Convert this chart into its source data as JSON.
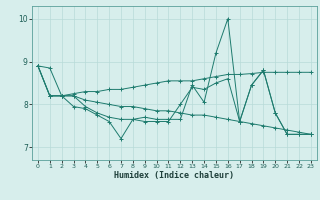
{
  "title": "",
  "xlabel": "Humidex (Indice chaleur)",
  "xlim": [
    -0.5,
    23.5
  ],
  "ylim": [
    6.7,
    10.3
  ],
  "yticks": [
    7,
    8,
    9,
    10
  ],
  "xticks": [
    0,
    1,
    2,
    3,
    4,
    5,
    6,
    7,
    8,
    9,
    10,
    11,
    12,
    13,
    14,
    15,
    16,
    17,
    18,
    19,
    20,
    21,
    22,
    23
  ],
  "bg_color": "#d7eeec",
  "line_color": "#1e7b6e",
  "grid_color": "#b8dbd8",
  "figsize": [
    3.2,
    2.0
  ],
  "dpi": 100,
  "series": [
    [
      8.9,
      8.85,
      8.2,
      7.95,
      7.9,
      7.75,
      7.6,
      7.2,
      7.65,
      7.6,
      7.6,
      7.6,
      8.0,
      8.4,
      8.35,
      8.5,
      8.6,
      7.6,
      8.45,
      8.8,
      7.8,
      7.3,
      7.3,
      7.3
    ],
    [
      8.9,
      8.2,
      8.2,
      8.25,
      8.3,
      8.3,
      8.35,
      8.35,
      8.4,
      8.45,
      8.5,
      8.55,
      8.55,
      8.55,
      8.6,
      8.65,
      8.7,
      8.7,
      8.72,
      8.75,
      8.75,
      8.75,
      8.75,
      8.75
    ],
    [
      8.9,
      8.2,
      8.2,
      8.2,
      8.1,
      8.05,
      8.0,
      7.95,
      7.95,
      7.9,
      7.85,
      7.85,
      7.8,
      7.75,
      7.75,
      7.7,
      7.65,
      7.6,
      7.55,
      7.5,
      7.45,
      7.4,
      7.35,
      7.3
    ],
    [
      8.9,
      8.2,
      8.2,
      8.2,
      7.95,
      7.8,
      7.7,
      7.65,
      7.65,
      7.7,
      7.65,
      7.65,
      7.65,
      8.45,
      8.05,
      9.2,
      10.0,
      7.6,
      8.45,
      8.8,
      7.8,
      7.3,
      7.3,
      7.3
    ]
  ]
}
